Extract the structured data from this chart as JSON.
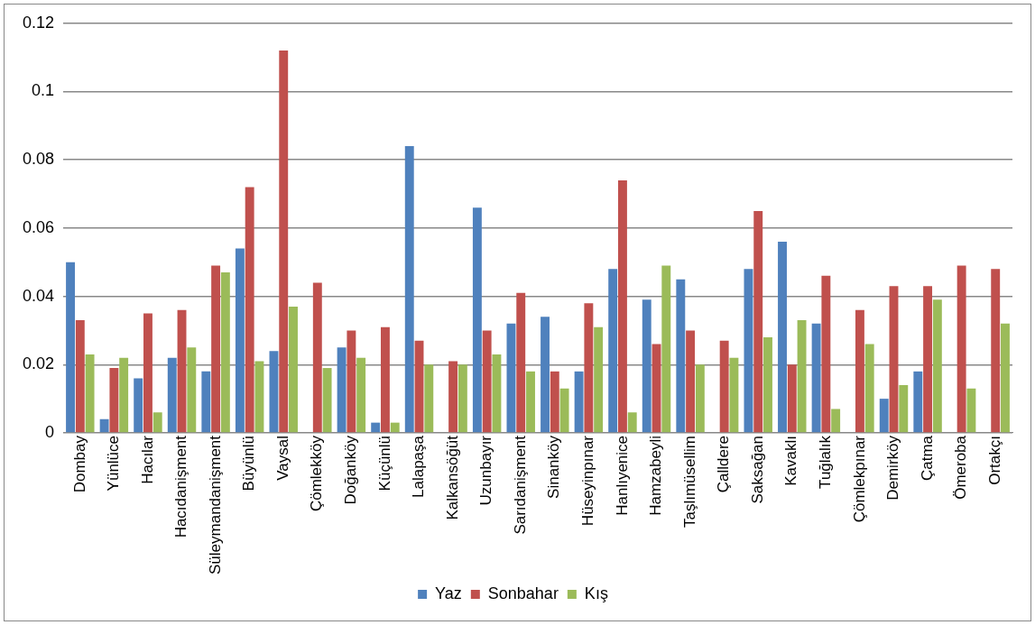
{
  "chart_data": {
    "type": "bar",
    "categories": [
      "Dombay",
      "Yünlüce",
      "Hacılar",
      "Hacıdanişment",
      "Süleymandanişment",
      "Büyünlü",
      "Vaysal",
      "Çömlekköy",
      "Doğanköy",
      "Küçünlü",
      "Lalapaşa",
      "Kalkansöğüt",
      "Uzunbayır",
      "Sarıdanişment",
      "Sinanköy",
      "Hüseyinpınar",
      "Hanlıyenice",
      "Hamzabeyli",
      "Taşlımüsellim",
      "Çalldere",
      "Saksağan",
      "Kavaklı",
      "Tuğlalık",
      "Çömlekpınar",
      "Demirköy",
      "Çatma",
      "Ömeroba",
      "Ortakçı"
    ],
    "series": [
      {
        "name": "Yaz",
        "color": "#4f81bd",
        "values": [
          0.05,
          0.004,
          0.016,
          0.022,
          0.018,
          0.054,
          0.024,
          0,
          0.025,
          0.003,
          0.084,
          0,
          0.066,
          0.032,
          0.034,
          0.018,
          0.048,
          0.039,
          0.045,
          0,
          0.048,
          0.056,
          0.032,
          0,
          0.01,
          0.018,
          0,
          0
        ]
      },
      {
        "name": "Sonbahar",
        "color": "#c0504d",
        "values": [
          0.033,
          0.019,
          0.035,
          0.036,
          0.049,
          0.072,
          0.112,
          0.044,
          0.03,
          0.031,
          0.027,
          0.021,
          0.03,
          0.041,
          0.018,
          0.038,
          0.074,
          0.026,
          0.03,
          0.027,
          0.065,
          0.02,
          0.046,
          0.036,
          0.043,
          0.043,
          0.049,
          0.048
        ]
      },
      {
        "name": "Kış",
        "color": "#9bbb59",
        "values": [
          0.023,
          0.022,
          0.006,
          0.025,
          0.047,
          0.021,
          0.037,
          0.019,
          0.022,
          0.003,
          0.02,
          0.02,
          0.023,
          0.018,
          0.013,
          0.031,
          0.006,
          0.049,
          0.02,
          0.022,
          0.028,
          0.033,
          0.007,
          0.026,
          0.014,
          0.039,
          0.013,
          0.032
        ]
      }
    ],
    "ylim": [
      0,
      0.12
    ],
    "yticks": [
      0,
      0.02,
      0.04,
      0.06,
      0.08,
      0.1,
      0.12
    ],
    "grid": "y",
    "legend": "bottom"
  }
}
